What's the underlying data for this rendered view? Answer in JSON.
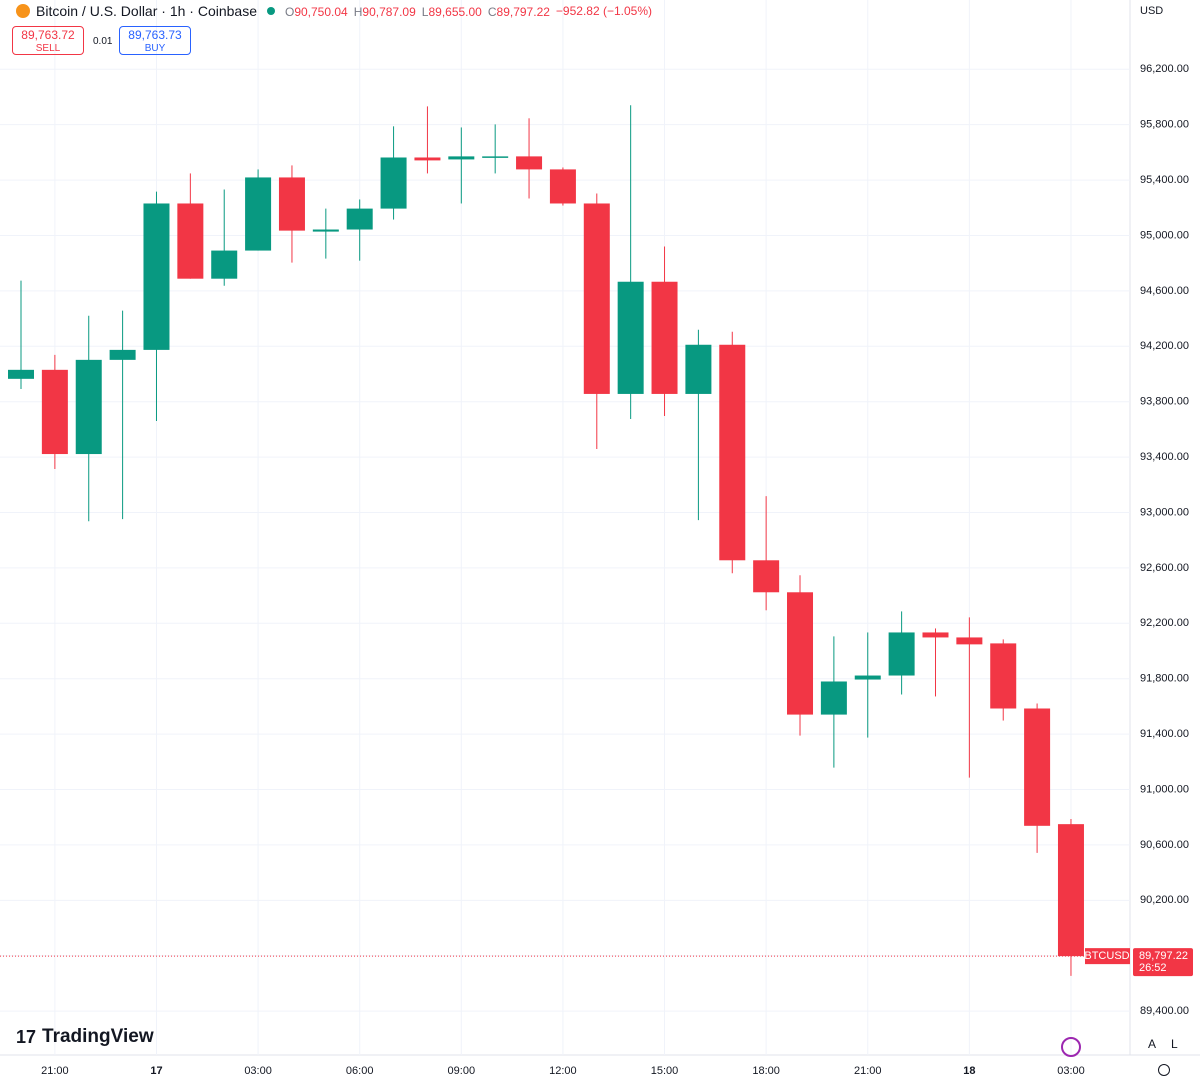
{
  "header": {
    "symbol": "Bitcoin / U.S. Dollar · 1h · Coinbase",
    "o_label": "O",
    "o_value": "90,750.04",
    "h_label": "H",
    "h_value": "90,787.09",
    "l_label": "L",
    "l_value": "89,655.00",
    "c_label": "C",
    "c_value": "89,797.22",
    "change": "−952.82 (−1.05%)",
    "sell_price": "89,763.72",
    "sell_label": "SELL",
    "spread": "0.01",
    "buy_price": "89,763.73",
    "buy_label": "BUY",
    "currency": "USD",
    "brand": "TradingView",
    "auto_button": "A",
    "log_button": "L"
  },
  "chart_data": {
    "type": "candlestick",
    "categories": [
      null,
      "21:00",
      null,
      null,
      "17",
      null,
      null,
      "03:00",
      null,
      null,
      "06:00",
      null,
      null,
      "09:00",
      null,
      null,
      "12:00",
      null,
      null,
      "15:00",
      null,
      null,
      "18:00",
      null,
      null,
      "21:00",
      null,
      null,
      "18",
      null,
      null,
      "03:00"
    ],
    "open": [
      93965,
      94030,
      93422,
      94102,
      94174,
      95231,
      94688,
      94891,
      95419,
      95028,
      95043,
      95194,
      95563,
      95549,
      95564,
      95571,
      95477,
      95231,
      93856,
      94666,
      93856,
      94211,
      92655,
      92424,
      91541,
      91794,
      91823,
      92134,
      92098,
      92055,
      91585,
      90750.04
    ],
    "high": [
      94674,
      94138,
      94420,
      94457,
      95317,
      95448,
      95332,
      95477,
      95506,
      95194,
      95260,
      95788,
      95932,
      95780,
      95802,
      95846,
      95491,
      95303,
      95940,
      94920,
      94319,
      94305,
      93118,
      92547,
      92106,
      92134,
      92286,
      92163,
      92243,
      92084,
      91621,
      90787.09
    ],
    "low": [
      93892,
      93314,
      92937,
      92952,
      93661,
      94688,
      94637,
      94891,
      94804,
      94833,
      94818,
      95115,
      95448,
      95231,
      95448,
      95267,
      95216,
      93458,
      93675,
      93697,
      92945,
      92561,
      92294,
      91389,
      91158,
      91375,
      91686,
      91672,
      91086,
      91498,
      90543,
      89655
    ],
    "close": [
      94030,
      93422,
      94102,
      94174,
      95231,
      94688,
      94891,
      95419,
      95035,
      95043,
      95194,
      95563,
      95542,
      95571,
      95571,
      95477,
      95231,
      93856,
      94666,
      93856,
      94211,
      92655,
      92424,
      91541,
      91780,
      91823,
      92134,
      92098,
      92048,
      91585,
      90738,
      89797.22
    ],
    "up_color": "#089981",
    "down_color": "#f23645",
    "ylim": [
      89300,
      96700
    ],
    "yticks": [
      {
        "value": 89400,
        "label": "89,400.00"
      },
      {
        "value": 89800,
        "label": "89,800.00"
      },
      {
        "value": 90200,
        "label": "90,200.00"
      },
      {
        "value": 90600,
        "label": "90,600.00"
      },
      {
        "value": 91000,
        "label": "91,000.00"
      },
      {
        "value": 91400,
        "label": "91,400.00"
      },
      {
        "value": 91800,
        "label": "91,800.00"
      },
      {
        "value": 92200,
        "label": "92,200.00"
      },
      {
        "value": 92600,
        "label": "92,600.00"
      },
      {
        "value": 93000,
        "label": "93,000.00"
      },
      {
        "value": 93400,
        "label": "93,400.00"
      },
      {
        "value": 93800,
        "label": "93,800.00"
      },
      {
        "value": 94200,
        "label": "94,200.00"
      },
      {
        "value": 94600,
        "label": "94,600.00"
      },
      {
        "value": 95000,
        "label": "95,000.00"
      },
      {
        "value": 95400,
        "label": "95,400.00"
      },
      {
        "value": 95800,
        "label": "95,800.00"
      },
      {
        "value": 96200,
        "label": "96,200.00"
      }
    ],
    "grid": true,
    "price_tag": {
      "symbol": "BTCUSD",
      "price": "89,797.22",
      "countdown": "26:52"
    }
  }
}
